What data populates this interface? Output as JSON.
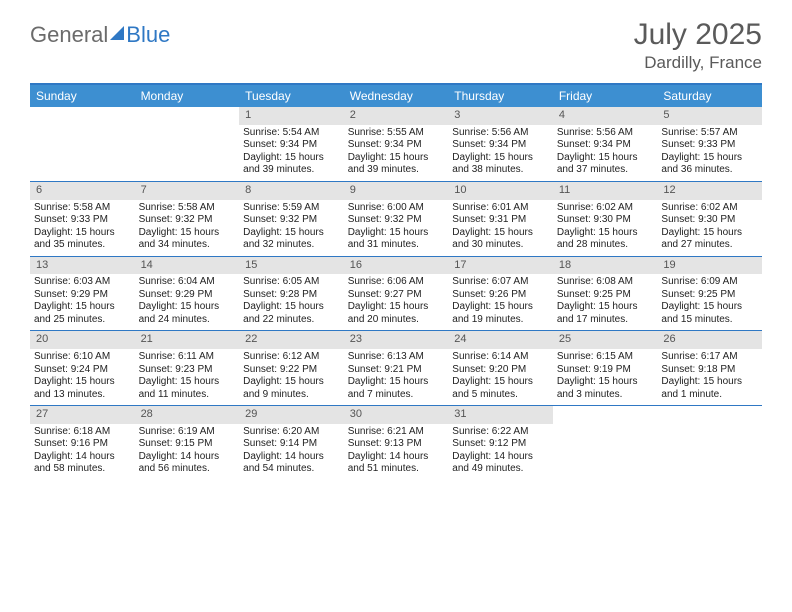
{
  "logo": {
    "part1": "General",
    "part2": "Blue"
  },
  "title": "July 2025",
  "location": "Dardilly, France",
  "colors": {
    "header_bar": "#3d8fd1",
    "rule": "#2f78c4",
    "daynum_bg": "#e4e4e4",
    "text": "#333333"
  },
  "day_names": [
    "Sunday",
    "Monday",
    "Tuesday",
    "Wednesday",
    "Thursday",
    "Friday",
    "Saturday"
  ],
  "weeks": [
    [
      null,
      null,
      {
        "n": "1",
        "sr": "Sunrise: 5:54 AM",
        "ss": "Sunset: 9:34 PM",
        "dl": "Daylight: 15 hours and 39 minutes."
      },
      {
        "n": "2",
        "sr": "Sunrise: 5:55 AM",
        "ss": "Sunset: 9:34 PM",
        "dl": "Daylight: 15 hours and 39 minutes."
      },
      {
        "n": "3",
        "sr": "Sunrise: 5:56 AM",
        "ss": "Sunset: 9:34 PM",
        "dl": "Daylight: 15 hours and 38 minutes."
      },
      {
        "n": "4",
        "sr": "Sunrise: 5:56 AM",
        "ss": "Sunset: 9:34 PM",
        "dl": "Daylight: 15 hours and 37 minutes."
      },
      {
        "n": "5",
        "sr": "Sunrise: 5:57 AM",
        "ss": "Sunset: 9:33 PM",
        "dl": "Daylight: 15 hours and 36 minutes."
      }
    ],
    [
      {
        "n": "6",
        "sr": "Sunrise: 5:58 AM",
        "ss": "Sunset: 9:33 PM",
        "dl": "Daylight: 15 hours and 35 minutes."
      },
      {
        "n": "7",
        "sr": "Sunrise: 5:58 AM",
        "ss": "Sunset: 9:32 PM",
        "dl": "Daylight: 15 hours and 34 minutes."
      },
      {
        "n": "8",
        "sr": "Sunrise: 5:59 AM",
        "ss": "Sunset: 9:32 PM",
        "dl": "Daylight: 15 hours and 32 minutes."
      },
      {
        "n": "9",
        "sr": "Sunrise: 6:00 AM",
        "ss": "Sunset: 9:32 PM",
        "dl": "Daylight: 15 hours and 31 minutes."
      },
      {
        "n": "10",
        "sr": "Sunrise: 6:01 AM",
        "ss": "Sunset: 9:31 PM",
        "dl": "Daylight: 15 hours and 30 minutes."
      },
      {
        "n": "11",
        "sr": "Sunrise: 6:02 AM",
        "ss": "Sunset: 9:30 PM",
        "dl": "Daylight: 15 hours and 28 minutes."
      },
      {
        "n": "12",
        "sr": "Sunrise: 6:02 AM",
        "ss": "Sunset: 9:30 PM",
        "dl": "Daylight: 15 hours and 27 minutes."
      }
    ],
    [
      {
        "n": "13",
        "sr": "Sunrise: 6:03 AM",
        "ss": "Sunset: 9:29 PM",
        "dl": "Daylight: 15 hours and 25 minutes."
      },
      {
        "n": "14",
        "sr": "Sunrise: 6:04 AM",
        "ss": "Sunset: 9:29 PM",
        "dl": "Daylight: 15 hours and 24 minutes."
      },
      {
        "n": "15",
        "sr": "Sunrise: 6:05 AM",
        "ss": "Sunset: 9:28 PM",
        "dl": "Daylight: 15 hours and 22 minutes."
      },
      {
        "n": "16",
        "sr": "Sunrise: 6:06 AM",
        "ss": "Sunset: 9:27 PM",
        "dl": "Daylight: 15 hours and 20 minutes."
      },
      {
        "n": "17",
        "sr": "Sunrise: 6:07 AM",
        "ss": "Sunset: 9:26 PM",
        "dl": "Daylight: 15 hours and 19 minutes."
      },
      {
        "n": "18",
        "sr": "Sunrise: 6:08 AM",
        "ss": "Sunset: 9:25 PM",
        "dl": "Daylight: 15 hours and 17 minutes."
      },
      {
        "n": "19",
        "sr": "Sunrise: 6:09 AM",
        "ss": "Sunset: 9:25 PM",
        "dl": "Daylight: 15 hours and 15 minutes."
      }
    ],
    [
      {
        "n": "20",
        "sr": "Sunrise: 6:10 AM",
        "ss": "Sunset: 9:24 PM",
        "dl": "Daylight: 15 hours and 13 minutes."
      },
      {
        "n": "21",
        "sr": "Sunrise: 6:11 AM",
        "ss": "Sunset: 9:23 PM",
        "dl": "Daylight: 15 hours and 11 minutes."
      },
      {
        "n": "22",
        "sr": "Sunrise: 6:12 AM",
        "ss": "Sunset: 9:22 PM",
        "dl": "Daylight: 15 hours and 9 minutes."
      },
      {
        "n": "23",
        "sr": "Sunrise: 6:13 AM",
        "ss": "Sunset: 9:21 PM",
        "dl": "Daylight: 15 hours and 7 minutes."
      },
      {
        "n": "24",
        "sr": "Sunrise: 6:14 AM",
        "ss": "Sunset: 9:20 PM",
        "dl": "Daylight: 15 hours and 5 minutes."
      },
      {
        "n": "25",
        "sr": "Sunrise: 6:15 AM",
        "ss": "Sunset: 9:19 PM",
        "dl": "Daylight: 15 hours and 3 minutes."
      },
      {
        "n": "26",
        "sr": "Sunrise: 6:17 AM",
        "ss": "Sunset: 9:18 PM",
        "dl": "Daylight: 15 hours and 1 minute."
      }
    ],
    [
      {
        "n": "27",
        "sr": "Sunrise: 6:18 AM",
        "ss": "Sunset: 9:16 PM",
        "dl": "Daylight: 14 hours and 58 minutes."
      },
      {
        "n": "28",
        "sr": "Sunrise: 6:19 AM",
        "ss": "Sunset: 9:15 PM",
        "dl": "Daylight: 14 hours and 56 minutes."
      },
      {
        "n": "29",
        "sr": "Sunrise: 6:20 AM",
        "ss": "Sunset: 9:14 PM",
        "dl": "Daylight: 14 hours and 54 minutes."
      },
      {
        "n": "30",
        "sr": "Sunrise: 6:21 AM",
        "ss": "Sunset: 9:13 PM",
        "dl": "Daylight: 14 hours and 51 minutes."
      },
      {
        "n": "31",
        "sr": "Sunrise: 6:22 AM",
        "ss": "Sunset: 9:12 PM",
        "dl": "Daylight: 14 hours and 49 minutes."
      },
      null,
      null
    ]
  ]
}
